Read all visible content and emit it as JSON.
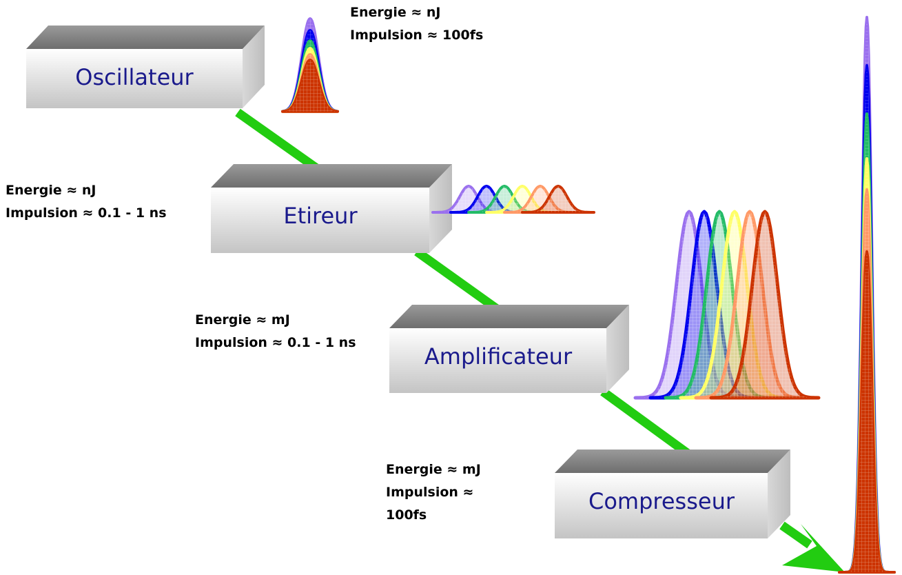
{
  "stages": [
    {
      "id": "oscillator",
      "label": "Oscillateur"
    },
    {
      "id": "stretcher",
      "label": "Etireur"
    },
    {
      "id": "amplifier",
      "label": "Amplificateur"
    },
    {
      "id": "compressor",
      "label": "Compresseur"
    }
  ],
  "annotations": {
    "oscillator": {
      "energy": "Energie ≈ nJ",
      "pulse": "Impulsion ≈ 100fs"
    },
    "stretcher": {
      "energy": "Energie ≈ nJ",
      "pulse": "Impulsion ≈ 0.1 - 1 ns"
    },
    "amplifier": {
      "energy": "Energie ≈ mJ",
      "pulse": "Impulsion ≈ 0.1 - 1 ns"
    },
    "compressor": {
      "energy": "Energie ≈ mJ",
      "pulse_line1": "Impulsion ≈",
      "pulse_line2": "100fs"
    }
  },
  "colors": {
    "beam": "#22cc11",
    "spectrum": [
      "#9a70ee",
      "#0000ee",
      "#22bb66",
      "#ffff66",
      "#ff9966",
      "#cc3300"
    ]
  }
}
